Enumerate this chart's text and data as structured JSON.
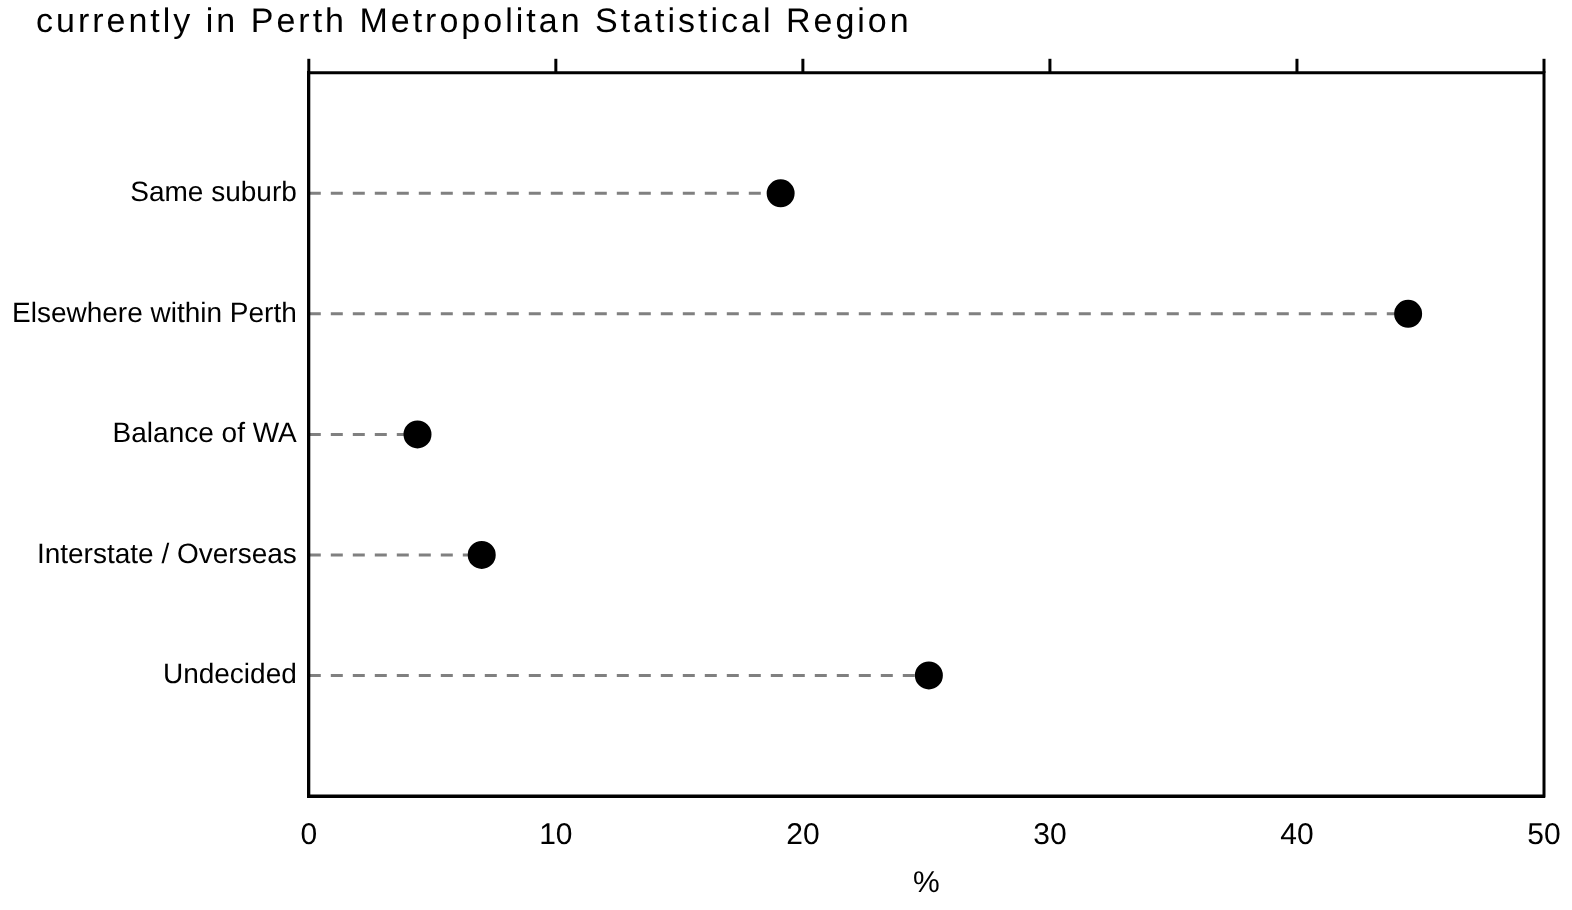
{
  "chart_data": {
    "type": "lollipop",
    "orientation": "horizontal",
    "title": "currently in Perth Metropolitan Statistical Region",
    "xlabel": "%",
    "categories": [
      "Same suburb",
      "Elsewhere within Perth",
      "Balance of WA",
      "Interstate / Overseas",
      "Undecided"
    ],
    "series": [
      {
        "color": "#000000",
        "values": [
          19.1,
          44.5,
          4.4,
          7.0,
          25.1
        ]
      }
    ],
    "xlim": [
      0,
      50
    ],
    "xticks": [
      0,
      10,
      20,
      30,
      40,
      50
    ],
    "grid": false,
    "legend": false,
    "marker": "circle",
    "line_style": "dashed"
  }
}
